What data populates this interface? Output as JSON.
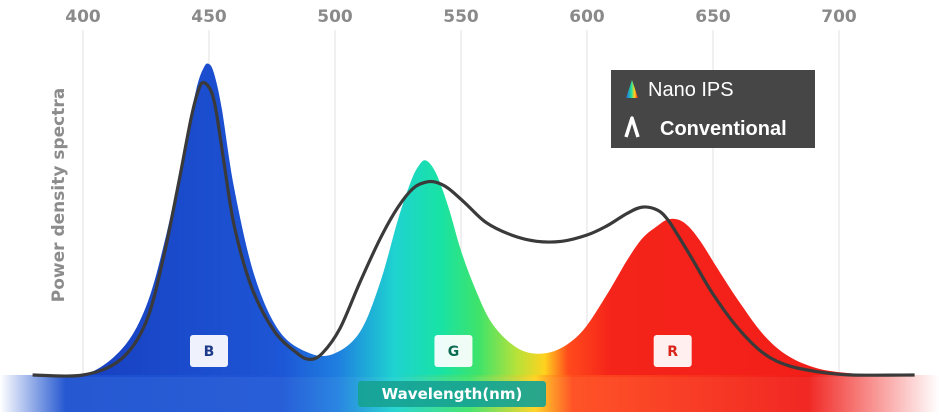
{
  "chart_data": {
    "type": "area",
    "title": "",
    "xlabel": "Wavelength(nm)",
    "ylabel": "Power density spectra",
    "xlim": [
      380,
      730
    ],
    "ylim": [
      0,
      1
    ],
    "xticks": [
      400,
      450,
      500,
      550,
      600,
      650,
      700
    ],
    "grid": "vertical",
    "legend_position": "top-right",
    "legend": [
      {
        "label": "Nano IPS",
        "icon": "rainbow-peak-icon"
      },
      {
        "label": "Conventional",
        "icon": "chevron-up-icon"
      }
    ],
    "series": [
      {
        "name": "Nano IPS",
        "x": [
          380,
          400,
          415,
          425,
          433,
          440,
          445,
          448,
          450,
          452,
          455,
          460,
          468,
          478,
          490,
          500,
          510,
          518,
          525,
          530,
          533,
          536,
          540,
          545,
          550,
          556,
          562,
          570,
          578,
          588,
          598,
          608,
          616,
          622,
          628,
          632,
          636,
          640,
          645,
          652,
          660,
          670,
          680,
          692,
          705,
          715,
          730
        ],
        "y": [
          0.0,
          0.0,
          0.08,
          0.22,
          0.45,
          0.72,
          0.92,
          0.99,
          1.0,
          0.97,
          0.86,
          0.6,
          0.32,
          0.14,
          0.07,
          0.07,
          0.14,
          0.3,
          0.5,
          0.62,
          0.67,
          0.69,
          0.65,
          0.54,
          0.4,
          0.27,
          0.17,
          0.1,
          0.07,
          0.08,
          0.14,
          0.26,
          0.37,
          0.44,
          0.48,
          0.5,
          0.5,
          0.48,
          0.43,
          0.34,
          0.24,
          0.13,
          0.06,
          0.02,
          0.005,
          0.0,
          0.0
        ]
      },
      {
        "name": "Conventional",
        "x": [
          380,
          400,
          415,
          425,
          432,
          438,
          443,
          446,
          448,
          451,
          453,
          456,
          460,
          467,
          476,
          485,
          490,
          495,
          502,
          510,
          518,
          525,
          531,
          536,
          540,
          545,
          552,
          560,
          570,
          580,
          590,
          600,
          608,
          616,
          622,
          628,
          632,
          636,
          642,
          650,
          660,
          670,
          680,
          692,
          705,
          730
        ],
        "y": [
          0.0,
          0.0,
          0.05,
          0.17,
          0.38,
          0.62,
          0.83,
          0.92,
          0.94,
          0.91,
          0.84,
          0.68,
          0.48,
          0.28,
          0.14,
          0.07,
          0.05,
          0.07,
          0.15,
          0.3,
          0.44,
          0.54,
          0.6,
          0.62,
          0.62,
          0.6,
          0.55,
          0.49,
          0.45,
          0.43,
          0.43,
          0.45,
          0.48,
          0.52,
          0.54,
          0.53,
          0.5,
          0.45,
          0.37,
          0.26,
          0.15,
          0.07,
          0.03,
          0.01,
          0.0,
          0.0
        ]
      }
    ],
    "annotations": [
      {
        "label": "B",
        "x": 450
      },
      {
        "label": "G",
        "x": 547
      },
      {
        "label": "R",
        "x": 634
      }
    ]
  },
  "colors": {
    "blue": "#1e50cf",
    "green": "#19d99a",
    "red": "#f2201a",
    "conventional_line": "#3a3a3a",
    "grid": "#e2e2e2",
    "legend_bg": "#464646",
    "xlabel_bg": "#17a394"
  }
}
